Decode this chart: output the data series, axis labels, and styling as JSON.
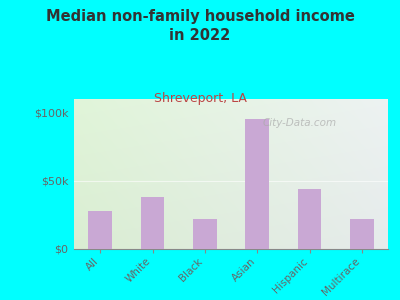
{
  "title": "Median non-family household income\nin 2022",
  "subtitle": "Shreveport, LA",
  "categories": [
    "All",
    "White",
    "Black",
    "Asian",
    "Hispanic",
    "Multirace"
  ],
  "values": [
    28000,
    38000,
    22000,
    95000,
    44000,
    22000
  ],
  "bar_color": "#c9a8d4",
  "background_outer": "#00FFFF",
  "background_plot_top_color": "#cde8c8",
  "background_plot_bottom_color": "#eef7eb",
  "background_plot_right_color": "#dce8e8",
  "title_color": "#333333",
  "subtitle_color": "#bb4444",
  "axis_color": "#888888",
  "tick_color": "#666666",
  "yticks": [
    0,
    50000,
    100000
  ],
  "ytick_labels": [
    "$0",
    "$50k",
    "$100k"
  ],
  "ylim": [
    0,
    110000
  ],
  "watermark": "City-Data.com"
}
